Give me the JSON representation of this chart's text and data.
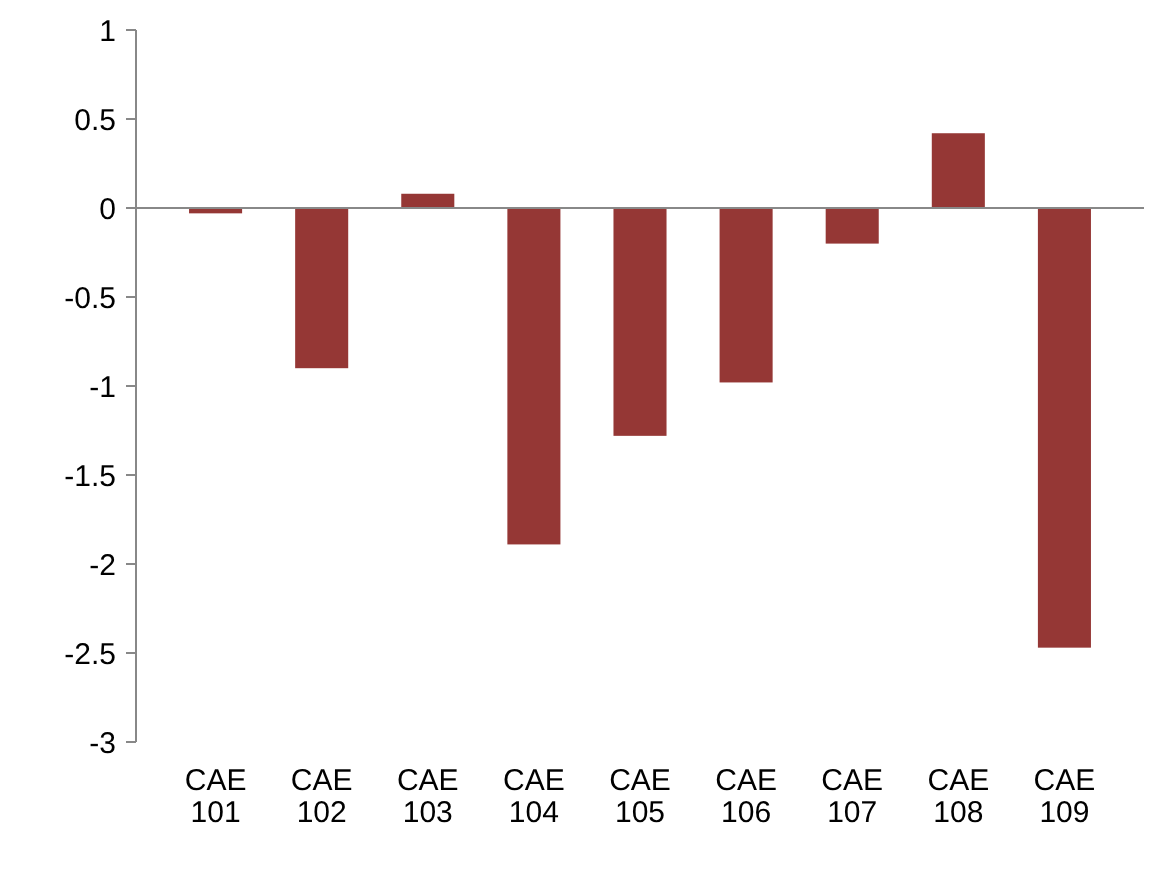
{
  "chart_data": {
    "type": "bar",
    "categories": [
      "CAE 101",
      "CAE 102",
      "CAE 103",
      "CAE 104",
      "CAE 105",
      "CAE 106",
      "CAE 107",
      "CAE 108",
      "CAE 109"
    ],
    "values": [
      -0.03,
      -0.9,
      0.08,
      -1.89,
      -1.28,
      -0.98,
      -0.2,
      0.42,
      -2.47
    ],
    "color": "#953735",
    "ylim": [
      -3,
      1
    ],
    "yticks": [
      -3,
      -2.5,
      -2,
      -1.5,
      -1,
      -0.5,
      0,
      0.5,
      1
    ]
  }
}
